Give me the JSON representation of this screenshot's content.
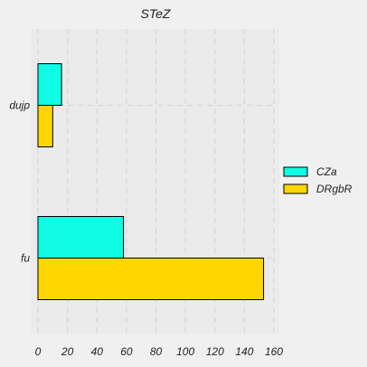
{
  "chart_data": {
    "type": "bar",
    "orientation": "horizontal",
    "title": "STeZ",
    "xlabel": "",
    "ylabel": "",
    "categories": [
      "fu",
      "dujp"
    ],
    "series": [
      {
        "name": "CZa",
        "color": "#10fce4",
        "values": [
          58,
          16
        ]
      },
      {
        "name": "DRgbR",
        "color": "#ffd700",
        "values": [
          153,
          10
        ]
      }
    ],
    "xlim": [
      0,
      160
    ],
    "xticks": [
      "0",
      "20",
      "40",
      "60",
      "80",
      "100",
      "120",
      "140",
      "160"
    ],
    "grid": true,
    "legend": "right",
    "background": "#f0f0f0",
    "plot_background": "#ebebeb"
  }
}
